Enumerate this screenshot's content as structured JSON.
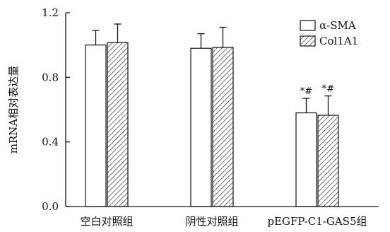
{
  "chart_data": {
    "type": "bar",
    "title": "",
    "xlabel": "",
    "ylabel": "mRNA相对表达量",
    "ylim": [
      0,
      1.2
    ],
    "yticks": [
      "0.0",
      "0.4",
      "0.8",
      "1.2"
    ],
    "categories": [
      "空白对照组",
      "阴性对照组",
      "pEGFP-C1-GAS5组"
    ],
    "series": [
      {
        "name": "α-SMA",
        "pattern": "solid-white",
        "values": [
          1.0,
          0.98,
          0.58
        ],
        "errors": [
          0.09,
          0.09,
          0.09
        ]
      },
      {
        "name": "Col1A1",
        "pattern": "diagonal-hatch",
        "values": [
          1.015,
          0.985,
          0.565
        ],
        "errors": [
          0.115,
          0.125,
          0.12
        ]
      }
    ],
    "annotations": [
      {
        "category": "pEGFP-C1-GAS5组",
        "series": "α-SMA",
        "text": "*#"
      },
      {
        "category": "pEGFP-C1-GAS5组",
        "series": "Col1A1",
        "text": "*#"
      }
    ],
    "legend": "top-right",
    "grid": false,
    "colors": {
      "bar_stroke": "#111111",
      "bar_fill": "#ffffff",
      "hatch": "#222222"
    }
  }
}
